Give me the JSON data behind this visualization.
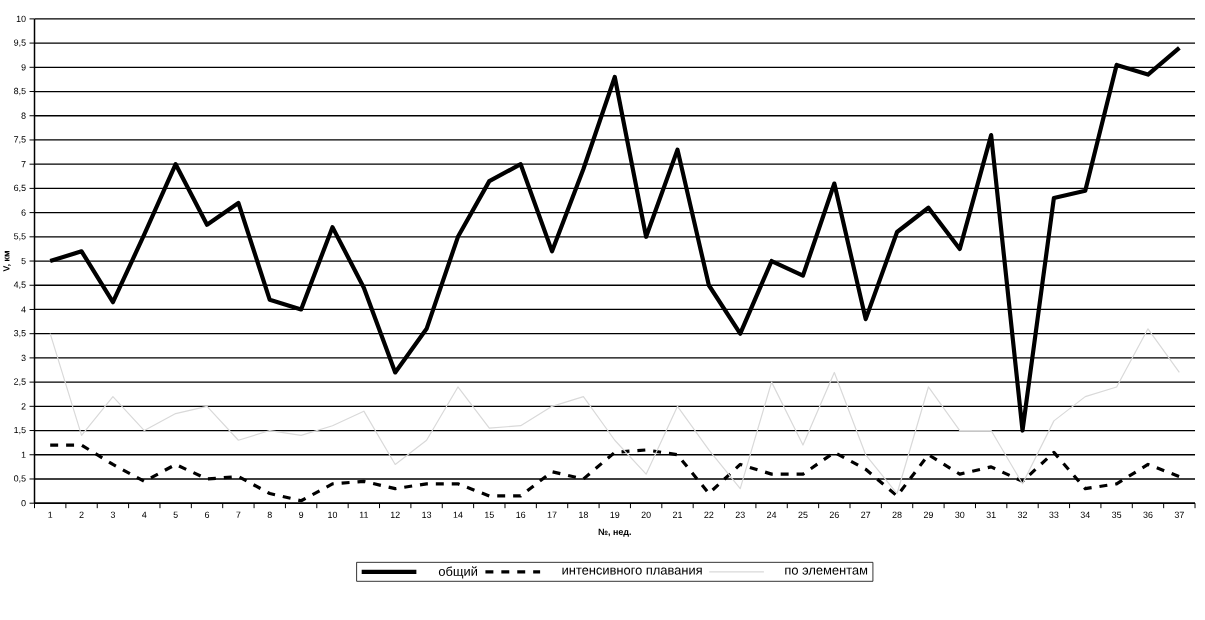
{
  "chart_data": {
    "type": "line",
    "xlabel": "№, нед.",
    "ylabel": "V, км",
    "categories": [
      "1",
      "2",
      "3",
      "4",
      "5",
      "6",
      "7",
      "8",
      "9",
      "10",
      "11",
      "12",
      "13",
      "14",
      "15",
      "16",
      "17",
      "18",
      "19",
      "20",
      "21",
      "22",
      "23",
      "24",
      "25",
      "26",
      "27",
      "28",
      "29",
      "30",
      "31",
      "32",
      "33",
      "34",
      "35",
      "36",
      "37"
    ],
    "series": [
      {
        "name": "общий",
        "color": "#000000",
        "line_style": "solid",
        "values": [
          5.0,
          5.2,
          4.15,
          5.55,
          7.0,
          5.75,
          6.2,
          4.2,
          4.0,
          5.7,
          4.45,
          2.7,
          3.6,
          5.5,
          6.65,
          7.0,
          5.2,
          6.9,
          8.8,
          5.5,
          7.3,
          4.5,
          3.5,
          5.0,
          4.7,
          6.6,
          3.8,
          5.6,
          6.1,
          5.25,
          7.6,
          1.5,
          6.3,
          6.45,
          9.05,
          8.85,
          9.4
        ]
      },
      {
        "name": "интенсивного плавания",
        "color": "#000000",
        "line_style": "dashed",
        "values": [
          1.2,
          1.2,
          0.8,
          0.45,
          0.8,
          0.5,
          0.55,
          0.2,
          0.05,
          0.4,
          0.45,
          0.3,
          0.4,
          0.4,
          0.15,
          0.15,
          0.65,
          0.5,
          1.05,
          1.1,
          1.0,
          0.2,
          0.8,
          0.6,
          0.6,
          1.05,
          0.7,
          0.15,
          1.0,
          0.6,
          0.75,
          0.45,
          1.05,
          0.3,
          0.4,
          0.8,
          0.55
        ]
      },
      {
        "name": "по элементам",
        "color": "#d9d9d9",
        "line_style": "solid",
        "values": [
          3.5,
          1.4,
          2.2,
          1.5,
          1.85,
          2.0,
          1.3,
          1.5,
          1.4,
          1.6,
          1.9,
          0.8,
          1.3,
          2.4,
          1.55,
          1.6,
          2.0,
          2.2,
          1.3,
          0.6,
          2.0,
          1.1,
          0.3,
          2.5,
          1.2,
          2.7,
          1.0,
          0.2,
          2.4,
          1.5,
          1.5,
          0.4,
          1.7,
          2.2,
          2.4,
          3.6,
          2.7
        ]
      }
    ],
    "ylim": [
      0,
      10
    ],
    "yticks": [
      0,
      {
        "value": 0.5,
        "label": "0,5"
      },
      1,
      {
        "value": 1.5,
        "label": "1,5"
      },
      2,
      {
        "value": 2.5,
        "label": "2,5"
      },
      3,
      {
        "value": 3.5,
        "label": "3,5"
      },
      4,
      {
        "value": 4.5,
        "label": "4,5"
      },
      5,
      {
        "value": 5.5,
        "label": "5,5"
      },
      6,
      {
        "value": 6.5,
        "label": "6,5"
      },
      7,
      {
        "value": 7.5,
        "label": "7,5"
      },
      8,
      {
        "value": 8.5,
        "label": "8,5"
      },
      9,
      {
        "value": 9.5,
        "label": "9,5"
      },
      10
    ],
    "grid": "y",
    "legend": "bottom",
    "marker": "none"
  }
}
